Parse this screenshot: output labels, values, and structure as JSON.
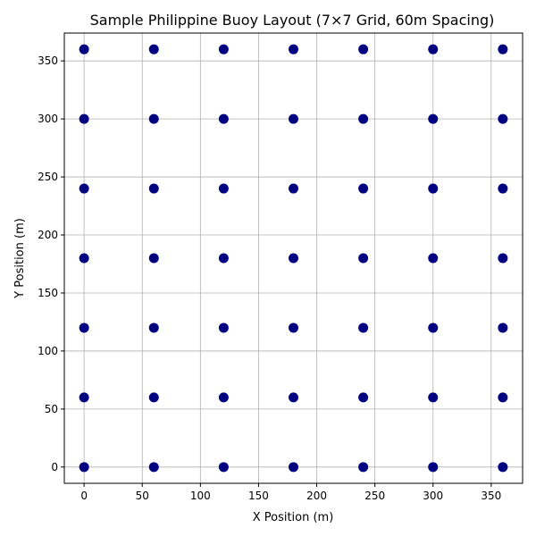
{
  "chart_data": {
    "type": "scatter",
    "title": "Sample Philippine Buoy Layout (7×7 Grid, 60m Spacing)",
    "xlabel": "X Position (m)",
    "ylabel": "Y Position (m)",
    "xlim": [
      -17,
      377
    ],
    "ylim": [
      -14,
      374
    ],
    "xticks": [
      0,
      50,
      100,
      150,
      200,
      250,
      300,
      350
    ],
    "yticks": [
      0,
      50,
      100,
      150,
      200,
      250,
      300,
      350
    ],
    "grid": true,
    "marker_color": "#000080",
    "points": [
      [
        0,
        0
      ],
      [
        60,
        0
      ],
      [
        120,
        0
      ],
      [
        180,
        0
      ],
      [
        240,
        0
      ],
      [
        300,
        0
      ],
      [
        360,
        0
      ],
      [
        0,
        60
      ],
      [
        60,
        60
      ],
      [
        120,
        60
      ],
      [
        180,
        60
      ],
      [
        240,
        60
      ],
      [
        300,
        60
      ],
      [
        360,
        60
      ],
      [
        0,
        120
      ],
      [
        60,
        120
      ],
      [
        120,
        120
      ],
      [
        180,
        120
      ],
      [
        240,
        120
      ],
      [
        300,
        120
      ],
      [
        360,
        120
      ],
      [
        0,
        180
      ],
      [
        60,
        180
      ],
      [
        120,
        180
      ],
      [
        180,
        180
      ],
      [
        240,
        180
      ],
      [
        300,
        180
      ],
      [
        360,
        180
      ],
      [
        0,
        240
      ],
      [
        60,
        240
      ],
      [
        120,
        240
      ],
      [
        180,
        240
      ],
      [
        240,
        240
      ],
      [
        300,
        240
      ],
      [
        360,
        240
      ],
      [
        0,
        300
      ],
      [
        60,
        300
      ],
      [
        120,
        300
      ],
      [
        180,
        300
      ],
      [
        240,
        300
      ],
      [
        300,
        300
      ],
      [
        360,
        300
      ],
      [
        0,
        360
      ],
      [
        60,
        360
      ],
      [
        120,
        360
      ],
      [
        180,
        360
      ],
      [
        240,
        360
      ],
      [
        300,
        360
      ],
      [
        360,
        360
      ]
    ]
  }
}
